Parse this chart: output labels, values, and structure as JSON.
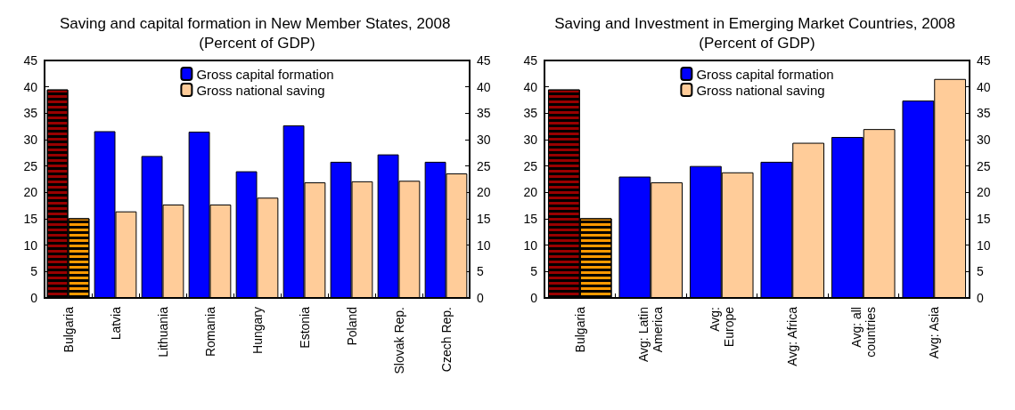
{
  "chart_data": [
    {
      "type": "bar",
      "title": "Saving and capital formation in New Member States, 2008 (Percent of GDP)",
      "categories": [
        "Bulgaria",
        "Latvia",
        "Lithuania",
        "Romania",
        "Hungary",
        "Estonia",
        "Poland",
        "Slovak Rep.",
        "Czech Rep."
      ],
      "series": [
        {
          "name": "Gross capital formation",
          "color": "#0000ff",
          "colors": [
            "#990000",
            "#0000ff",
            "#0000ff",
            "#0000ff",
            "#0000ff",
            "#0000ff",
            "#0000ff",
            "#0000ff",
            "#0000ff"
          ],
          "values": [
            39.5,
            31.6,
            26.9,
            31.5,
            24.0,
            32.7,
            25.8,
            27.2,
            25.8
          ]
        },
        {
          "name": "Gross national saving",
          "color": "#ffcc99",
          "colors": [
            "#ff9900",
            "#ffcc99",
            "#ffcc99",
            "#ffcc99",
            "#ffcc99",
            "#ffcc99",
            "#ffcc99",
            "#ffcc99",
            "#ffcc99"
          ],
          "values": [
            15.1,
            16.4,
            17.7,
            17.7,
            19.0,
            21.9,
            22.1,
            22.2,
            23.6
          ]
        }
      ],
      "ylim": [
        0,
        45
      ],
      "yticks": [
        0,
        5,
        10,
        15,
        20,
        25,
        30,
        35,
        40,
        45
      ],
      "y2lim": [
        0,
        45
      ],
      "y2ticks": [
        0,
        5,
        10,
        15,
        20,
        25,
        30,
        35,
        40,
        45
      ],
      "grid": false,
      "legend": "top"
    },
    {
      "type": "bar",
      "title": "Saving and Investment in Emerging Market Countries, 2008 (Percent of GDP)",
      "categories": [
        "Bulgaria",
        "Avg: Latin\nAmerica",
        "Avg:\nEurope",
        "Avg: Africa",
        "Avg: all\ncountries",
        "Avg: Asia"
      ],
      "series": [
        {
          "name": "Gross capital formation",
          "color": "#0000ff",
          "colors": [
            "#990000",
            "#0000ff",
            "#0000ff",
            "#0000ff",
            "#0000ff",
            "#0000ff"
          ],
          "values": [
            39.5,
            23.0,
            25.0,
            25.8,
            30.5,
            37.4
          ]
        },
        {
          "name": "Gross national saving",
          "color": "#ffcc99",
          "colors": [
            "#ff9900",
            "#ffcc99",
            "#ffcc99",
            "#ffcc99",
            "#ffcc99",
            "#ffcc99"
          ],
          "values": [
            15.1,
            21.9,
            23.8,
            29.4,
            32.0,
            41.5
          ]
        }
      ],
      "ylim": [
        0,
        45
      ],
      "yticks": [
        0,
        5,
        10,
        15,
        20,
        25,
        30,
        35,
        40,
        45
      ],
      "y2lim": [
        0,
        45
      ],
      "y2ticks": [
        0,
        5,
        10,
        15,
        20,
        25,
        30,
        35,
        40,
        45
      ],
      "grid": false,
      "legend": "top"
    }
  ]
}
